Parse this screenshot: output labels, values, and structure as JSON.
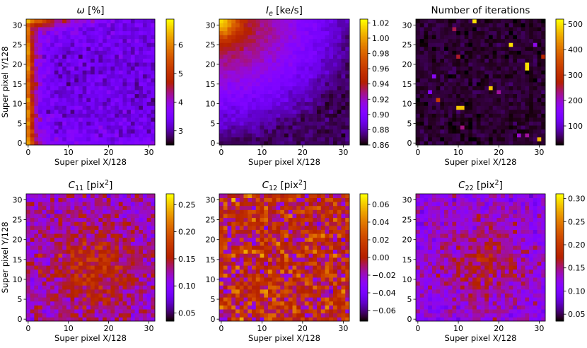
{
  "chart_data": [
    {
      "type": "heatmap",
      "id": "omega",
      "title": "ω [%]",
      "title_style": "italic-symbol",
      "xlabel": "Super pixel X/128",
      "ylabel": "Super pixel Y/128",
      "grid_size": [
        32,
        32
      ],
      "xlim": [
        -0.5,
        31.5
      ],
      "ylim": [
        -0.5,
        31.5
      ],
      "xticks": [
        0,
        10,
        20,
        30
      ],
      "yticks": [
        0,
        5,
        10,
        15,
        20,
        25,
        30
      ],
      "colormap": "gnuplot",
      "vmin": 2.5,
      "vmax": 6.9,
      "colorbar_ticks": [
        3,
        4,
        5,
        6
      ],
      "value_pattern": "bright at y-axis edge (x=0) and top-left corner (~6.5%), ~3–3.5% across the interior with noise",
      "corner_value": 6.6,
      "interior_value": 3.3
    },
    {
      "type": "heatmap",
      "id": "intensity",
      "title": "I_e [ke/s]",
      "title_style": "italic-subscript",
      "xlabel": "Super pixel X/128",
      "ylabel": "",
      "grid_size": [
        32,
        32
      ],
      "xlim": [
        -0.5,
        31.5
      ],
      "ylim": [
        -0.5,
        31.5
      ],
      "xticks": [
        0,
        10,
        20,
        30
      ],
      "yticks": [
        0,
        5,
        10,
        15,
        20,
        25,
        30
      ],
      "colormap": "gnuplot",
      "vmin": 0.86,
      "vmax": 1.025,
      "colorbar_ticks": [
        0.86,
        0.88,
        0.9,
        0.92,
        0.94,
        0.96,
        0.98,
        1.0,
        1.02
      ],
      "colorbar_tick_labels": [
        "0.86",
        "0.88",
        "0.90",
        "0.92",
        "0.94",
        "0.96",
        "0.98",
        "1.00",
        "1.02"
      ],
      "value_pattern": "peak ~1.02 at top-left corner, ~0.95 along top and left edges, falling to ~0.87 at bottom-right",
      "corner_value": 1.02,
      "far_corner_value": 0.87
    },
    {
      "type": "heatmap",
      "id": "iterations",
      "title": "Number of iterations",
      "xlabel": "Super pixel X/128",
      "ylabel": "",
      "grid_size": [
        32,
        32
      ],
      "xlim": [
        -0.5,
        31.5
      ],
      "ylim": [
        -0.5,
        31.5
      ],
      "xticks": [
        0,
        10,
        20,
        30
      ],
      "yticks": [
        0,
        5,
        10,
        15,
        20,
        25,
        30
      ],
      "colormap": "gnuplot",
      "vmin": 25,
      "vmax": 520,
      "colorbar_ticks": [
        100,
        200,
        300,
        400,
        500
      ],
      "background_value": 40,
      "value_pattern": "mostly ~30–60 iterations with a few high outlier super pixels",
      "highlights": [
        {
          "x": 14,
          "y": 31,
          "value": 500
        },
        {
          "x": 23,
          "y": 25,
          "value": 500
        },
        {
          "x": 27,
          "y": 20,
          "value": 500
        },
        {
          "x": 27,
          "y": 19,
          "value": 500
        },
        {
          "x": 18,
          "y": 14,
          "value": 480
        },
        {
          "x": 10,
          "y": 9,
          "value": 480
        },
        {
          "x": 11,
          "y": 9,
          "value": 480
        },
        {
          "x": 30,
          "y": 1,
          "value": 470
        },
        {
          "x": 9,
          "y": 29,
          "value": 250
        },
        {
          "x": 10,
          "y": 22,
          "value": 260
        },
        {
          "x": 5,
          "y": 11,
          "value": 330
        },
        {
          "x": 31,
          "y": 22,
          "value": 290
        },
        {
          "x": 11,
          "y": 4,
          "value": 230
        },
        {
          "x": 27,
          "y": 2,
          "value": 220
        },
        {
          "x": 25,
          "y": 2,
          "value": 200
        },
        {
          "x": 20,
          "y": 13,
          "value": 220
        },
        {
          "x": 4,
          "y": 17,
          "value": 170
        },
        {
          "x": 29,
          "y": 25,
          "value": 180
        },
        {
          "x": 3,
          "y": 13,
          "value": 160
        }
      ]
    },
    {
      "type": "heatmap",
      "id": "c11",
      "title": "C_11 [pix^2]",
      "title_style": "italic-subscript-superscript",
      "xlabel": "Super pixel X/128",
      "ylabel": "Super pixel Y/128",
      "grid_size": [
        32,
        32
      ],
      "xlim": [
        -0.5,
        31.5
      ],
      "ylim": [
        -0.5,
        31.5
      ],
      "xticks": [
        0,
        10,
        20,
        30
      ],
      "yticks": [
        0,
        5,
        10,
        15,
        20,
        25,
        30
      ],
      "colormap": "gnuplot",
      "vmin": 0.035,
      "vmax": 0.27,
      "colorbar_ticks": [
        0.05,
        0.1,
        0.15,
        0.2,
        0.25
      ],
      "colorbar_tick_labels": [
        "0.05",
        "0.10",
        "0.15",
        "0.20",
        "0.25"
      ],
      "value_pattern": "noisy ~0.10–0.15 with higher values (~0.17) in the central region, peaks ~0.25",
      "mean_value": 0.12
    },
    {
      "type": "heatmap",
      "id": "c12",
      "title": "C_12 [pix^2]",
      "title_style": "italic-subscript-superscript",
      "xlabel": "Super pixel X/128",
      "ylabel": "",
      "grid_size": [
        32,
        32
      ],
      "xlim": [
        -0.5,
        31.5
      ],
      "ylim": [
        -0.5,
        31.5
      ],
      "xticks": [
        0,
        10,
        20,
        30
      ],
      "yticks": [
        0,
        5,
        10,
        15,
        20,
        25,
        30
      ],
      "colormap": "gnuplot",
      "vmin": -0.072,
      "vmax": 0.072,
      "colorbar_ticks": [
        -0.06,
        -0.04,
        -0.02,
        0.0,
        0.02,
        0.04,
        0.06
      ],
      "colorbar_tick_labels": [
        "−0.06",
        "−0.04",
        "−0.02",
        "0.00",
        "0.02",
        "0.04",
        "0.06"
      ],
      "value_pattern": "noise centred near 0.00–0.01 with scattered ±0.06 extremes",
      "mean_value": 0.005
    },
    {
      "type": "heatmap",
      "id": "c22",
      "title": "C_22 [pix^2]",
      "title_style": "italic-subscript-superscript",
      "xlabel": "Super pixel X/128",
      "ylabel": "",
      "grid_size": [
        32,
        32
      ],
      "xlim": [
        -0.5,
        31.5
      ],
      "ylim": [
        -0.5,
        31.5
      ],
      "xticks": [
        0,
        10,
        20,
        30
      ],
      "yticks": [
        0,
        5,
        10,
        15,
        20,
        25,
        30
      ],
      "colormap": "gnuplot",
      "vmin": 0.035,
      "vmax": 0.31,
      "colorbar_ticks": [
        0.05,
        0.1,
        0.15,
        0.2,
        0.25,
        0.3
      ],
      "colorbar_tick_labels": [
        "0.05",
        "0.10",
        "0.15",
        "0.20",
        "0.25",
        "0.30"
      ],
      "value_pattern": "noisy ~0.10–0.14 with a central bump (~0.17), occasional peaks ~0.30",
      "mean_value": 0.12
    }
  ]
}
